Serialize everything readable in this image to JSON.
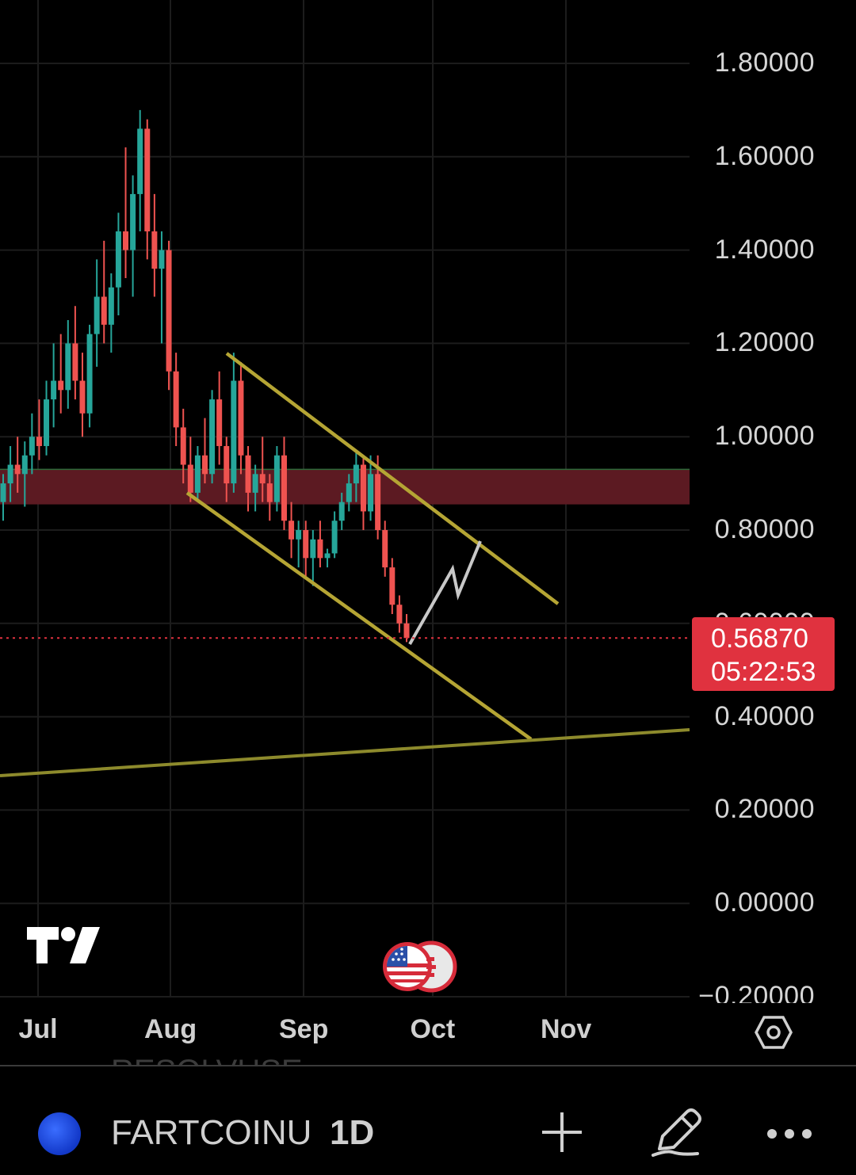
{
  "chart_data": {
    "type": "candlestick",
    "y_ticks": [
      "1.80000",
      "1.60000",
      "1.40000",
      "1.20000",
      "1.00000",
      "0.80000",
      "0.60000",
      "0.40000",
      "0.20000",
      "0.00000",
      "−0.20000"
    ],
    "x_ticks": [
      "Jul",
      "Aug",
      "Sep",
      "Oct",
      "Nov"
    ],
    "ylim": [
      -0.2,
      1.8
    ],
    "last_price": "0.56870",
    "countdown": "05:22:53",
    "ohlc": [
      [
        0.86,
        0.92,
        0.82,
        0.9
      ],
      [
        0.9,
        0.98,
        0.86,
        0.94
      ],
      [
        0.94,
        1.0,
        0.88,
        0.92
      ],
      [
        0.92,
        0.99,
        0.85,
        0.96
      ],
      [
        0.96,
        1.05,
        0.92,
        1.0
      ],
      [
        1.0,
        1.08,
        0.95,
        0.98
      ],
      [
        0.98,
        1.12,
        0.96,
        1.08
      ],
      [
        1.08,
        1.2,
        1.02,
        1.12
      ],
      [
        1.12,
        1.22,
        1.05,
        1.1
      ],
      [
        1.1,
        1.25,
        1.06,
        1.2
      ],
      [
        1.2,
        1.28,
        1.08,
        1.12
      ],
      [
        1.12,
        1.18,
        1.0,
        1.05
      ],
      [
        1.05,
        1.24,
        1.02,
        1.22
      ],
      [
        1.22,
        1.38,
        1.15,
        1.3
      ],
      [
        1.3,
        1.42,
        1.2,
        1.24
      ],
      [
        1.24,
        1.35,
        1.18,
        1.32
      ],
      [
        1.32,
        1.48,
        1.26,
        1.44
      ],
      [
        1.44,
        1.62,
        1.34,
        1.4
      ],
      [
        1.4,
        1.56,
        1.3,
        1.52
      ],
      [
        1.52,
        1.7,
        1.44,
        1.66
      ],
      [
        1.66,
        1.68,
        1.38,
        1.44
      ],
      [
        1.44,
        1.52,
        1.3,
        1.36
      ],
      [
        1.36,
        1.44,
        1.2,
        1.4
      ],
      [
        1.4,
        1.42,
        1.1,
        1.14
      ],
      [
        1.14,
        1.18,
        0.98,
        1.02
      ],
      [
        1.02,
        1.06,
        0.9,
        0.94
      ],
      [
        0.94,
        1.0,
        0.86,
        0.88
      ],
      [
        0.88,
        0.98,
        0.86,
        0.96
      ],
      [
        0.96,
        1.04,
        0.9,
        0.92
      ],
      [
        0.92,
        1.1,
        0.9,
        1.08
      ],
      [
        1.08,
        1.14,
        0.94,
        0.98
      ],
      [
        0.98,
        1.0,
        0.86,
        0.9
      ],
      [
        0.9,
        1.18,
        0.88,
        1.12
      ],
      [
        1.12,
        1.16,
        0.92,
        0.96
      ],
      [
        0.96,
        0.98,
        0.84,
        0.88
      ],
      [
        0.88,
        0.94,
        0.84,
        0.92
      ],
      [
        0.92,
        1.0,
        0.86,
        0.9
      ],
      [
        0.9,
        0.92,
        0.82,
        0.86
      ],
      [
        0.86,
        0.98,
        0.84,
        0.96
      ],
      [
        0.96,
        1.0,
        0.8,
        0.82
      ],
      [
        0.82,
        0.86,
        0.74,
        0.78
      ],
      [
        0.78,
        0.82,
        0.72,
        0.8
      ],
      [
        0.8,
        0.82,
        0.7,
        0.74
      ],
      [
        0.74,
        0.8,
        0.68,
        0.78
      ],
      [
        0.78,
        0.82,
        0.72,
        0.74
      ],
      [
        0.74,
        0.76,
        0.72,
        0.75
      ],
      [
        0.75,
        0.84,
        0.74,
        0.82
      ],
      [
        0.82,
        0.88,
        0.8,
        0.86
      ],
      [
        0.86,
        0.92,
        0.84,
        0.9
      ],
      [
        0.9,
        0.97,
        0.86,
        0.94
      ],
      [
        0.94,
        0.96,
        0.8,
        0.84
      ],
      [
        0.84,
        0.96,
        0.82,
        0.92
      ],
      [
        0.92,
        0.96,
        0.78,
        0.8
      ],
      [
        0.8,
        0.82,
        0.7,
        0.72
      ],
      [
        0.72,
        0.74,
        0.62,
        0.64
      ],
      [
        0.64,
        0.66,
        0.58,
        0.6
      ],
      [
        0.6,
        0.62,
        0.56,
        0.5687
      ]
    ],
    "channel_upper": [
      [
        1.16,
        1.18
      ],
      [
        1.0,
        0.98
      ],
      [
        0.7,
        0.67
      ]
    ],
    "resistance_zone": [
      0.855,
      0.93
    ]
  },
  "colors": {
    "up": "#26a69a",
    "down": "#ef5350",
    "channel": "#b5a534",
    "zone": "#5c1a22",
    "price": "#e0323f"
  },
  "ghost_text": "RESOLVUSE",
  "toolbar": {
    "symbol": "FARTCOINU",
    "interval": "1D"
  },
  "icons": [
    "settings-hexagon-icon",
    "plus-icon",
    "pencil-icon",
    "more-dots-icon",
    "tradingview-logo-icon",
    "us-flag-icon"
  ]
}
